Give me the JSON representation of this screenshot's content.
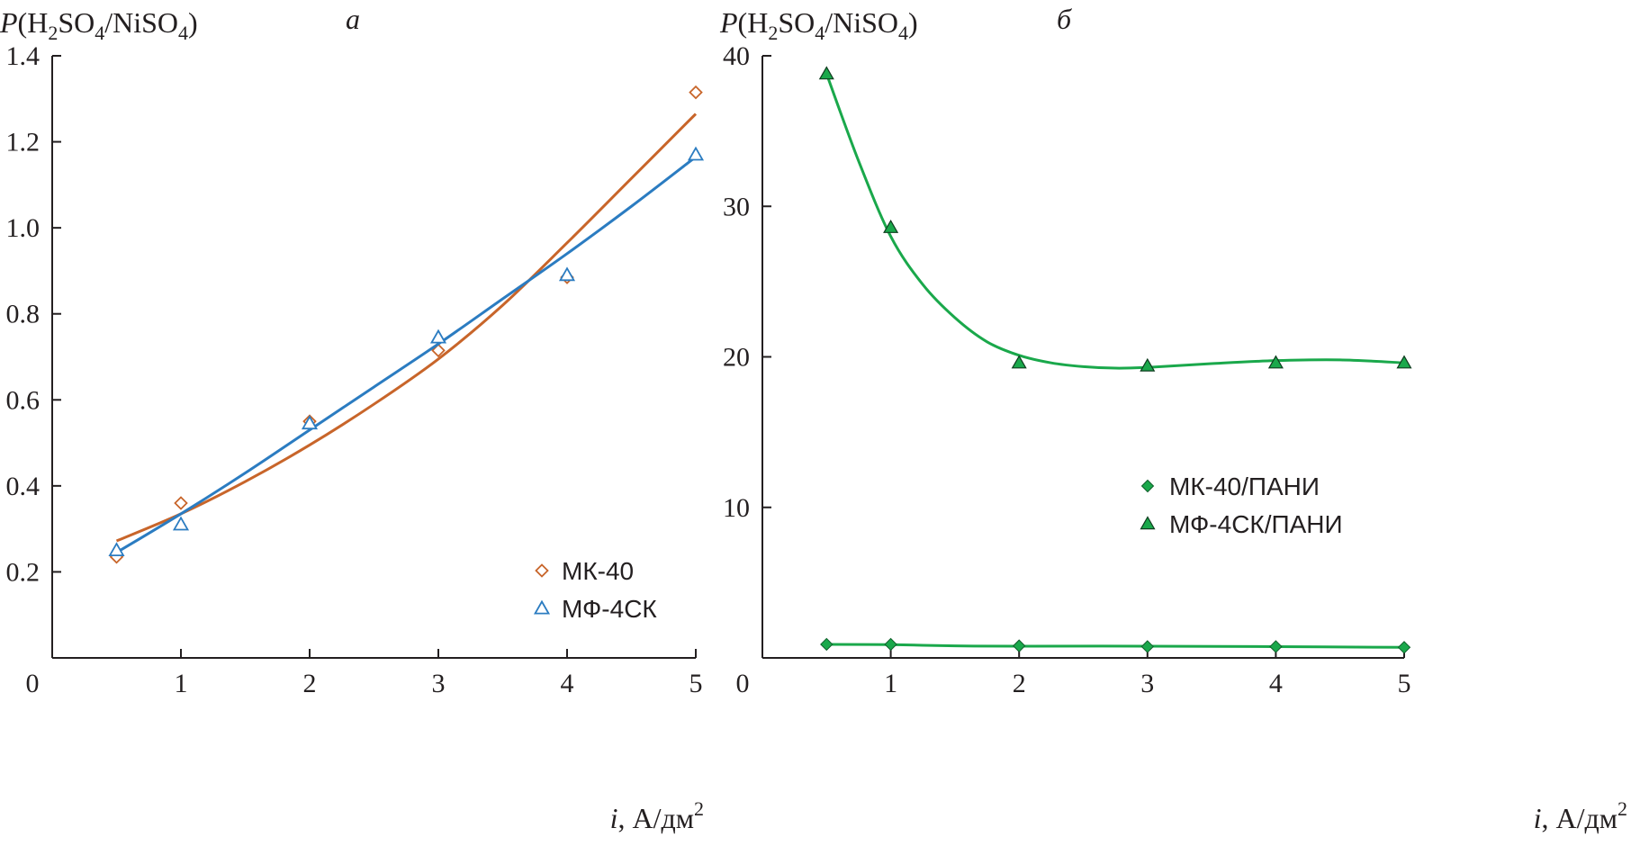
{
  "chart_data": [
    {
      "type": "scatter",
      "panel_letter": "а",
      "ylabel": {
        "prefix": "P",
        "text": "(H",
        "sub1": "2",
        "mid": "SO",
        "sub2": "4",
        "mid2": "/NiSO",
        "sub3": "4",
        "suffix": ")"
      },
      "xlabel": {
        "var": "i",
        "text": ", А/дм",
        "sup": "2"
      },
      "xlim": [
        0,
        5
      ],
      "ylim": [
        0,
        1.4
      ],
      "xticks": [
        0,
        1,
        2,
        3,
        4,
        5
      ],
      "xtick_labels": [
        "0",
        "1",
        "2",
        "3",
        "4",
        "5"
      ],
      "yticks": [
        0.2,
        0.4,
        0.6,
        0.8,
        1.0,
        1.2,
        1.4
      ],
      "ytick_labels": [
        "0.2",
        "0.4",
        "0.6",
        "0.8",
        "1.0",
        "1.2",
        "1.4"
      ],
      "legend_position": "bottom-right",
      "series": [
        {
          "name": "МК-40",
          "marker": "diamond-open",
          "color": "#c8652a",
          "x": [
            0.5,
            1,
            2,
            3,
            4,
            5
          ],
          "y": [
            0.235,
            0.36,
            0.55,
            0.715,
            0.885,
            1.315
          ],
          "fit": [
            [
              0.5,
              0.272
            ],
            [
              1,
              0.335
            ],
            [
              1.5,
              0.41
            ],
            [
              2,
              0.495
            ],
            [
              2.5,
              0.59
            ],
            [
              3,
              0.695
            ],
            [
              3.5,
              0.82
            ],
            [
              4,
              0.965
            ],
            [
              4.5,
              1.115
            ],
            [
              5,
              1.265
            ]
          ]
        },
        {
          "name": "МФ-4СК",
          "marker": "triangle-open",
          "color": "#2b7cc1",
          "x": [
            0.5,
            1,
            2,
            3,
            4,
            5
          ],
          "y": [
            0.25,
            0.31,
            0.545,
            0.745,
            0.89,
            1.17
          ],
          "fit": [
            [
              0.5,
              0.245
            ],
            [
              1,
              0.335
            ],
            [
              1.5,
              0.43
            ],
            [
              2,
              0.53
            ],
            [
              2.5,
              0.63
            ],
            [
              3,
              0.73
            ],
            [
              3.5,
              0.835
            ],
            [
              4,
              0.94
            ],
            [
              4.5,
              1.05
            ],
            [
              5,
              1.165
            ]
          ]
        }
      ]
    },
    {
      "type": "line",
      "panel_letter": "б",
      "ylabel": {
        "prefix": "P",
        "text": "(H",
        "sub1": "2",
        "mid": "SO",
        "sub2": "4",
        "mid2": "/NiSO",
        "sub3": "4",
        "suffix": ")"
      },
      "xlabel": {
        "var": "i",
        "text": ", А/дм",
        "sup": "2"
      },
      "xlim": [
        0,
        5
      ],
      "ylim": [
        0,
        40
      ],
      "xticks": [
        0,
        1,
        2,
        3,
        4,
        5
      ],
      "xtick_labels": [
        "0",
        "1",
        "2",
        "3",
        "4",
        "5"
      ],
      "yticks": [
        10,
        20,
        30,
        40
      ],
      "ytick_labels": [
        "10",
        "20",
        "30",
        "40"
      ],
      "legend_position": "center-right",
      "series": [
        {
          "name": "МК-40/ПАНИ",
          "marker": "diamond-filled",
          "color": "#1aa84b",
          "x": [
            0.5,
            1,
            2,
            3,
            4,
            5
          ],
          "y": [
            0.9,
            0.9,
            0.8,
            0.75,
            0.75,
            0.7
          ],
          "curve": [
            [
              0.5,
              0.9
            ],
            [
              1,
              0.88
            ],
            [
              1.5,
              0.8
            ],
            [
              2,
              0.78
            ],
            [
              3,
              0.78
            ],
            [
              4,
              0.75
            ],
            [
              5,
              0.7
            ]
          ]
        },
        {
          "name": "МФ-4СК/ПАНИ",
          "marker": "triangle-filled",
          "color": "#1aa84b",
          "x": [
            0.5,
            1,
            2,
            3,
            4,
            5
          ],
          "y": [
            38.8,
            28.6,
            19.6,
            19.4,
            19.6,
            19.6
          ],
          "curve": [
            [
              0.5,
              38.8
            ],
            [
              0.75,
              33.0
            ],
            [
              1,
              28.0
            ],
            [
              1.25,
              24.8
            ],
            [
              1.5,
              22.6
            ],
            [
              1.75,
              21.0
            ],
            [
              2,
              20.1
            ],
            [
              2.25,
              19.6
            ],
            [
              2.5,
              19.35
            ],
            [
              2.75,
              19.25
            ],
            [
              3,
              19.3
            ],
            [
              3.5,
              19.55
            ],
            [
              4,
              19.75
            ],
            [
              4.5,
              19.8
            ],
            [
              5,
              19.6
            ]
          ]
        }
      ]
    }
  ]
}
